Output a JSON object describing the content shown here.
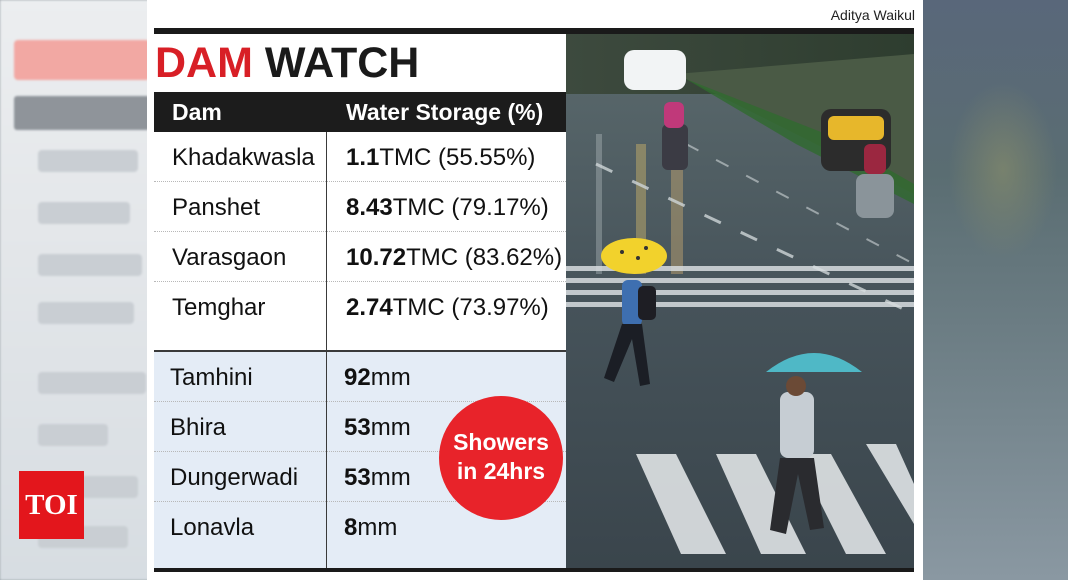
{
  "credit": "Aditya Waikul",
  "title": {
    "part1": "DAM",
    "part2": "WATCH"
  },
  "table": {
    "headers": {
      "dam": "Dam",
      "storage": "Water Storage (%)"
    },
    "rows": [
      {
        "name": "Khadakwasla",
        "value": "1.1",
        "unit": "TMC",
        "percent": "(55.55%)"
      },
      {
        "name": "Panshet",
        "value": "8.43",
        "unit": "TMC",
        "percent": "(79.17%)"
      },
      {
        "name": "Varasgaon",
        "value": "10.72",
        "unit": "TMC",
        "percent": "(83.62%)"
      },
      {
        "name": "Temghar",
        "value": "2.74",
        "unit": "TMC",
        "percent": "(73.97%)"
      }
    ]
  },
  "rainfall": {
    "rows": [
      {
        "name": "Tamhini",
        "value": "92",
        "unit": "mm"
      },
      {
        "name": "Bhira",
        "value": "53",
        "unit": "mm"
      },
      {
        "name": "Dungerwadi",
        "value": "53",
        "unit": "mm"
      },
      {
        "name": "Lonavla",
        "value": "8",
        "unit": "mm"
      }
    ],
    "badge": {
      "line1": "Showers",
      "line2": "in 24hrs"
    }
  },
  "logo": "TOI",
  "colors": {
    "accent_red": "#d81f26",
    "badge_red": "#e8232a",
    "header_dark": "#1c1c1c",
    "rain_bg": "#e4ecf6"
  }
}
